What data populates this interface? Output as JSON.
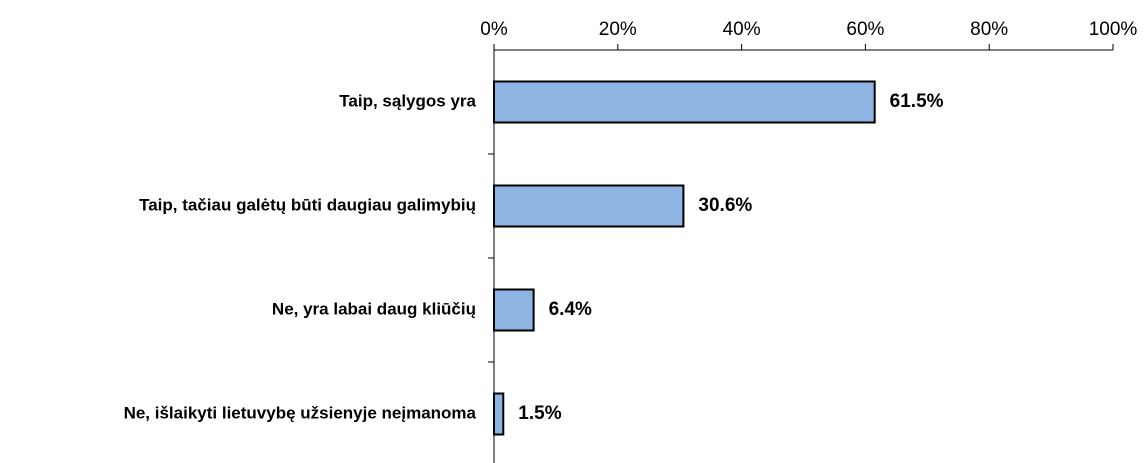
{
  "chart_data": {
    "type": "bar",
    "orientation": "horizontal",
    "categories": [
      "Taip, sąlygos yra",
      "Taip, tačiau galėtų būti daugiau galimybių",
      "Ne, yra labai daug kliūčių",
      "Ne, išlaikyti lietuvybę užsienyje neįmanoma"
    ],
    "values": [
      61.5,
      30.6,
      6.4,
      1.5
    ],
    "value_labels": [
      "61.5%",
      "30.6%",
      "6.4%",
      "1.5%"
    ],
    "color": "#8eb4e3",
    "xlim": [
      0,
      100
    ],
    "xticks": [
      {
        "value": 0,
        "label": "0%"
      },
      {
        "value": 20,
        "label": "20%"
      },
      {
        "value": 40,
        "label": "40%"
      },
      {
        "value": 60,
        "label": "60%"
      },
      {
        "value": 80,
        "label": "80%"
      },
      {
        "value": 100,
        "label": "100%"
      }
    ],
    "grid": false
  }
}
